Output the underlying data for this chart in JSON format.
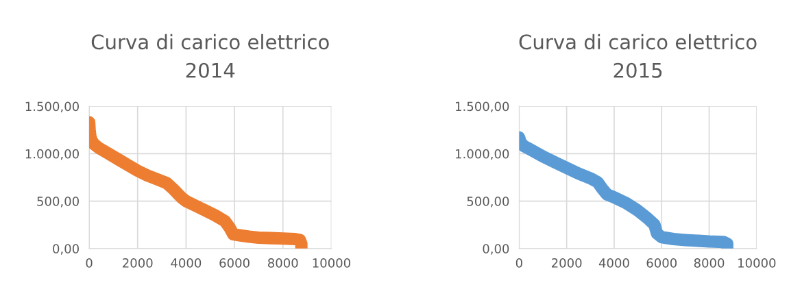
{
  "chart_data": [
    {
      "type": "line",
      "title": "Curva di carico elettrico 2014",
      "grid": true,
      "legend": false,
      "xlim": [
        0,
        10000
      ],
      "xticks": [
        0,
        2000,
        4000,
        6000,
        8000,
        10000
      ],
      "ylim": [
        0,
        1500
      ],
      "yticks": [
        {
          "value": 0,
          "label": "0,00"
        },
        {
          "value": 500,
          "label": "500,00"
        },
        {
          "value": 1000,
          "label": "1.000,00"
        },
        {
          "value": 1500,
          "label": "1.500,00"
        }
      ],
      "series": [
        {
          "color": "#ed7d31",
          "x": [
            0,
            20,
            50,
            100,
            200,
            400,
            800,
            1200,
            1600,
            2000,
            2400,
            2800,
            3200,
            3500,
            3800,
            4000,
            4400,
            4800,
            5200,
            5600,
            5800,
            5950,
            6200,
            6600,
            7000,
            7500,
            8000,
            8500,
            8700,
            8760,
            8760
          ],
          "values": [
            1330,
            1250,
            1180,
            1140,
            1100,
            1060,
            1000,
            940,
            880,
            820,
            770,
            730,
            690,
            620,
            540,
            500,
            450,
            400,
            350,
            290,
            220,
            150,
            140,
            125,
            115,
            110,
            105,
            100,
            90,
            50,
            5
          ]
        }
      ]
    },
    {
      "type": "line",
      "title": "Curva di carico elettrico 2015",
      "grid": true,
      "legend": false,
      "xlim": [
        0,
        10000
      ],
      "xticks": [
        0,
        2000,
        4000,
        6000,
        8000,
        10000
      ],
      "ylim": [
        0,
        1500
      ],
      "yticks": [
        {
          "value": 0,
          "label": "0,00"
        },
        {
          "value": 500,
          "label": "500,00"
        },
        {
          "value": 1000,
          "label": "1.000,00"
        },
        {
          "value": 1500,
          "label": "1.500,00"
        }
      ],
      "series": [
        {
          "color": "#5b9bd5",
          "x": [
            0,
            50,
            200,
            500,
            1000,
            1500,
            2000,
            2500,
            3000,
            3300,
            3500,
            3700,
            4000,
            4500,
            5000,
            5400,
            5700,
            5800,
            6000,
            6500,
            7000,
            8000,
            8600,
            8760,
            8760
          ],
          "values": [
            1170,
            1120,
            1080,
            1040,
            970,
            910,
            850,
            790,
            740,
            700,
            630,
            570,
            540,
            480,
            400,
            320,
            250,
            160,
            120,
            100,
            90,
            75,
            70,
            50,
            5
          ]
        }
      ]
    }
  ]
}
